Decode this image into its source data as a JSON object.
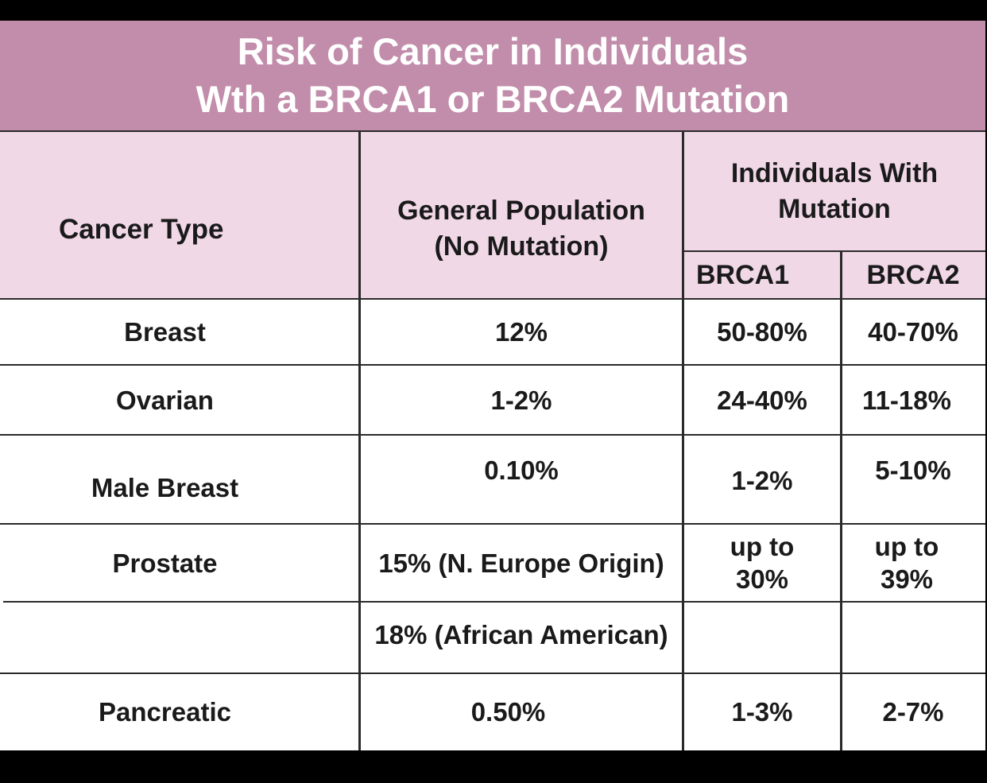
{
  "title": {
    "line1": "Risk of Cancer in Individuals",
    "line2": "Wth a BRCA1 or BRCA2 Mutation"
  },
  "headers": {
    "cancer_type": "Cancer Type",
    "general_population_line1": "General Population",
    "general_population_line2": "(No Mutation)",
    "mutation_group_line1": "Individuals With",
    "mutation_group_line2": "Mutation",
    "brca1": "BRCA1",
    "brca2": "BRCA2"
  },
  "rows": [
    {
      "cancer": "Breast",
      "general": "12%",
      "brca1": "50-80%",
      "brca2": "40-70%"
    },
    {
      "cancer": "Ovarian",
      "general": "1-2%",
      "brca1": "24-40%",
      "brca2": "11-18%"
    },
    {
      "cancer": "Male Breast",
      "general": "0.10%",
      "brca1": "1-2%",
      "brca2": "5-10%"
    },
    {
      "cancer": "Prostate",
      "general": "15% (N. Europe Origin)",
      "brca1_line1": "up to",
      "brca1_line2": "30%",
      "brca2_line1": "up to",
      "brca2_line2": "39%"
    },
    {
      "cancer": "",
      "general": "18% (African American)",
      "brca1": "",
      "brca2": ""
    },
    {
      "cancer": "Pancreatic",
      "general": "0.50%",
      "brca1": "1-3%",
      "brca2": "2-7%"
    }
  ],
  "colors": {
    "title_background": "#c28daa",
    "header_background": "#f1d8e7",
    "body_background": "#ffffff",
    "frame": "#000000"
  }
}
